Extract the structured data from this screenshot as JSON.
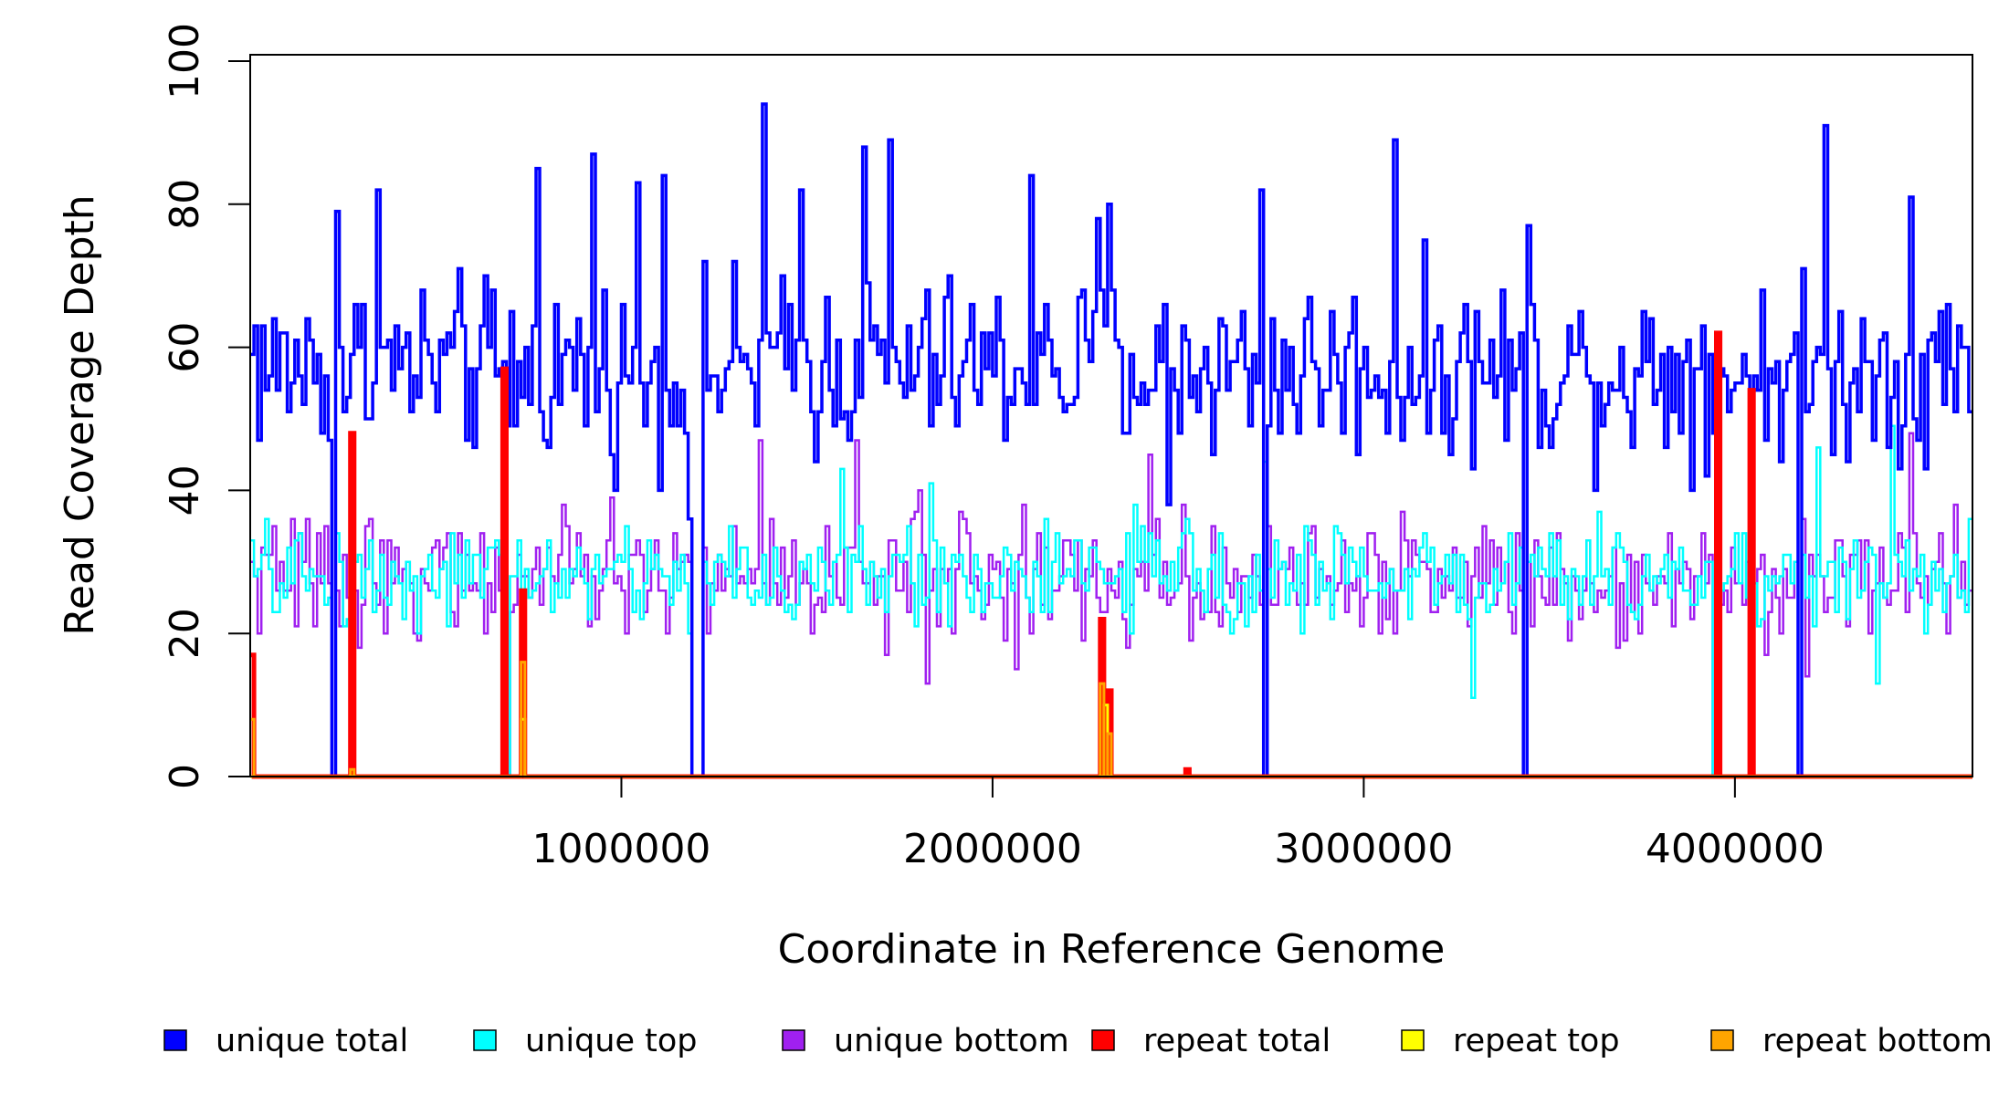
{
  "chart_data": {
    "type": "line",
    "title": "",
    "xlabel": "Coordinate in Reference Genome",
    "ylabel": "Read Coverage Depth",
    "xlim": [
      0,
      4640000
    ],
    "ylim": [
      0,
      100
    ],
    "x_ticks": [
      1000000,
      2000000,
      3000000,
      4000000
    ],
    "x_tick_labels": [
      "1000000",
      "2000000",
      "3000000",
      "4000000"
    ],
    "y_ticks": [
      0,
      20,
      40,
      60,
      80,
      100
    ],
    "y_tick_labels": [
      "0",
      "20",
      "40",
      "60",
      "80",
      "100"
    ],
    "bin_width": 10000,
    "coverage_gaps": [
      [
        215000,
        225000
      ],
      [
        690000,
        700000
      ],
      [
        1190000,
        1215000
      ],
      [
        2730000,
        2740000
      ],
      [
        3430000,
        3440000
      ],
      [
        3940000,
        3950000
      ],
      [
        4035000,
        4045000
      ],
      [
        4170000,
        4180000
      ]
    ],
    "series": [
      {
        "name": "unique total",
        "color": "#0000ff",
        "stroke_width": 3.5,
        "mean": 57,
        "spread": 9,
        "spike_max": 94,
        "spikes": [
          [
            15000,
            63
          ],
          [
            235000,
            79
          ],
          [
            340000,
            82
          ],
          [
            775000,
            85
          ],
          [
            920000,
            87
          ],
          [
            1040000,
            83
          ],
          [
            1115000,
            84
          ],
          [
            1385000,
            94
          ],
          [
            1480000,
            82
          ],
          [
            1650000,
            88
          ],
          [
            1720000,
            89
          ],
          [
            2100000,
            84
          ],
          [
            2280000,
            78
          ],
          [
            2310000,
            80
          ],
          [
            2720000,
            82
          ],
          [
            3080000,
            89
          ],
          [
            3440000,
            77
          ],
          [
            4240000,
            91
          ],
          [
            4470000,
            81
          ]
        ],
        "dips": [
          [
            690000,
            49
          ],
          [
            1180000,
            36
          ],
          [
            2470000,
            38
          ],
          [
            3940000,
            48
          ],
          [
            4040000,
            18
          ]
        ]
      },
      {
        "name": "unique top",
        "color": "#00ffff",
        "stroke_width": 2.5,
        "mean": 28,
        "spread": 5,
        "spikes": [
          [
            1595000,
            43
          ],
          [
            1830000,
            41
          ],
          [
            2380000,
            38
          ],
          [
            2730000,
            44
          ],
          [
            4225000,
            46
          ],
          [
            4420000,
            49
          ]
        ],
        "dips": [
          [
            3290000,
            11
          ],
          [
            4380000,
            13
          ]
        ]
      },
      {
        "name": "unique bottom",
        "color": "#a020f0",
        "stroke_width": 2.5,
        "mean": 28,
        "spread": 6,
        "spikes": [
          [
            1370000,
            47
          ],
          [
            1635000,
            47
          ],
          [
            1800000,
            40
          ],
          [
            2420000,
            45
          ],
          [
            4470000,
            48
          ]
        ],
        "dips": [
          [
            1825000,
            13
          ],
          [
            2060000,
            15
          ],
          [
            2365000,
            18
          ],
          [
            4190000,
            14
          ]
        ]
      },
      {
        "name": "repeat total",
        "color": "#ff0000",
        "stroke_width": 5,
        "baseline": 0,
        "spikes": [
          [
            5000,
            17
          ],
          [
            270000,
            48
          ],
          [
            680000,
            57
          ],
          [
            730000,
            26
          ],
          [
            2290000,
            22
          ],
          [
            2310000,
            12
          ],
          [
            2520000,
            1
          ],
          [
            3950000,
            62
          ],
          [
            4040000,
            54
          ]
        ]
      },
      {
        "name": "repeat top",
        "color": "#ffff00",
        "stroke_width": 3,
        "baseline": 0,
        "spikes": [
          [
            2300000,
            10
          ],
          [
            730000,
            8
          ]
        ]
      },
      {
        "name": "repeat bottom",
        "color": "#ffa500",
        "stroke_width": 3,
        "baseline": 0,
        "spikes": [
          [
            5000,
            8
          ],
          [
            730000,
            16
          ],
          [
            2295000,
            13
          ],
          [
            2315000,
            6
          ],
          [
            270000,
            1
          ]
        ]
      }
    ],
    "legend": {
      "placement": "bottom",
      "entries": [
        {
          "label": "unique total",
          "color": "#0000ff"
        },
        {
          "label": "unique top",
          "color": "#00ffff"
        },
        {
          "label": "unique bottom",
          "color": "#a020f0"
        },
        {
          "label": "repeat total",
          "color": "#ff0000"
        },
        {
          "label": "repeat top",
          "color": "#ffff00"
        },
        {
          "label": "repeat bottom",
          "color": "#ffa500"
        }
      ]
    }
  }
}
